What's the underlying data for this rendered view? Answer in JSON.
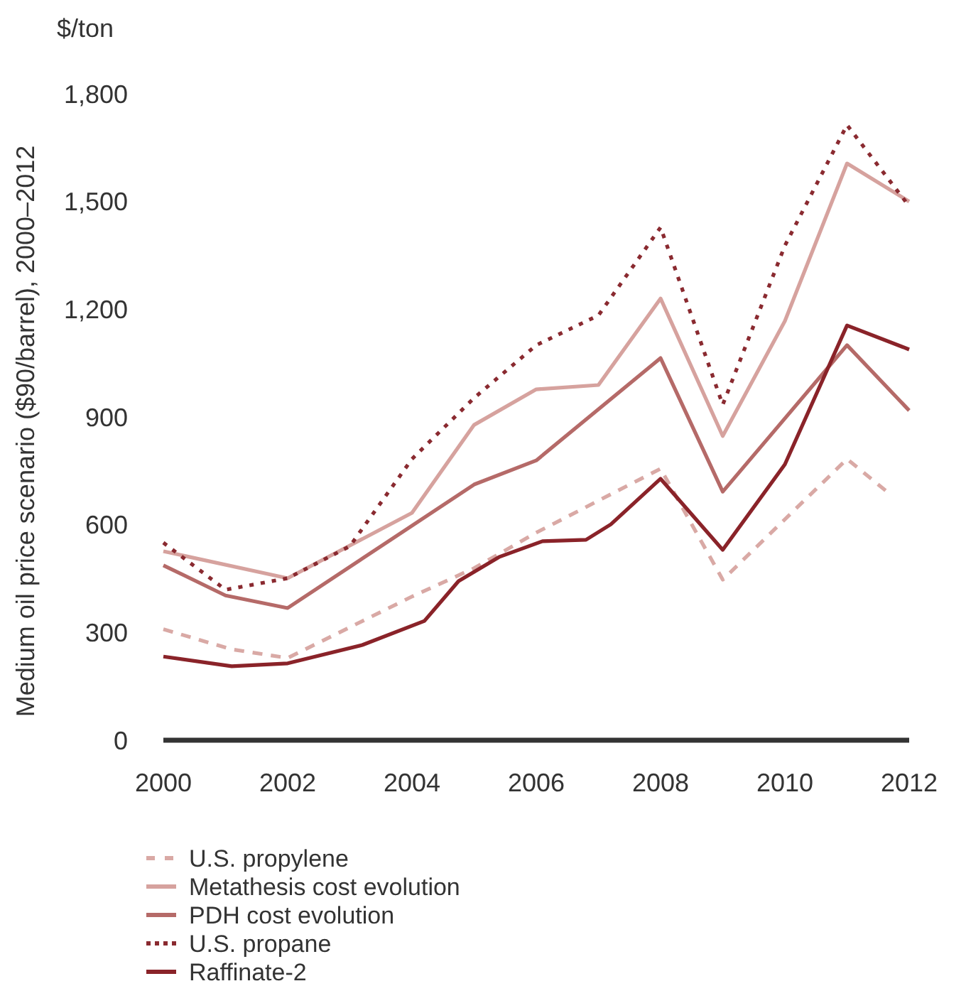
{
  "chart_data": {
    "type": "line",
    "ylabel": "Medium oil price scenario ($90/barrel), 2000–2012",
    "annotations": [
      "$/ton"
    ],
    "xlim": [
      2000,
      2012
    ],
    "xticks": [
      2000,
      2002,
      2004,
      2006,
      2008,
      2010,
      2012
    ],
    "ylim": [
      0,
      1800
    ],
    "yticks": [
      0,
      300,
      600,
      900,
      {
        "value": 1200,
        "label": "1,200"
      },
      {
        "value": 1500,
        "label": "1,500"
      },
      {
        "value": 1800,
        "label": "1,800"
      }
    ],
    "grid": false,
    "legend": "bottom",
    "series": [
      {
        "name": "U.S. propylene",
        "color": "#d9a9a5",
        "line_style": "dashed",
        "x": [
          2000,
          2001.1,
          2002,
          2004,
          2005,
          2006,
          2008,
          2009,
          2011,
          2011.7
        ],
        "values": [
          309,
          253,
          229,
          400,
          479,
          578,
          756,
          447,
          783,
          684
        ]
      },
      {
        "name": "Metathesis cost evolution",
        "color": "#d6a29e",
        "line_style": "solid",
        "x": [
          2000,
          2002,
          2004,
          2005,
          2006,
          2007,
          2008,
          2009,
          2010,
          2011,
          2012
        ],
        "values": [
          526,
          451,
          633,
          878,
          977,
          989,
          1230,
          847,
          1167,
          1606,
          1500
        ]
      },
      {
        "name": "PDH cost evolution",
        "color": "#b56a68",
        "line_style": "solid",
        "x": [
          2000,
          2001,
          2002,
          2005,
          2006,
          2008,
          2009,
          2011,
          2012
        ],
        "values": [
          487,
          403,
          368,
          712,
          779,
          1064,
          692,
          1100,
          918
        ]
      },
      {
        "name": "U.S. propane",
        "color": "#8a2a30",
        "line_style": "dotted",
        "x": [
          2000,
          2001,
          2002,
          2003,
          2004,
          2005,
          2006,
          2007,
          2008,
          2009,
          2010,
          2011,
          2012
        ],
        "values": [
          550,
          419,
          451,
          540,
          783,
          953,
          1100,
          1183,
          1428,
          934,
          1377,
          1713,
          1487
        ]
      },
      {
        "name": "Raffinate-2",
        "color": "#8a2329",
        "line_style": "solid",
        "x": [
          2000,
          2001.1,
          2002,
          2003.2,
          2004.2,
          2004.75,
          2005.4,
          2006.1,
          2006.8,
          2007.2,
          2008,
          2009,
          2010,
          2011,
          2012
        ],
        "values": [
          233,
          206,
          214,
          265,
          332,
          443,
          510,
          554,
          558,
          601,
          728,
          530,
          768,
          1155,
          1088
        ]
      }
    ]
  }
}
